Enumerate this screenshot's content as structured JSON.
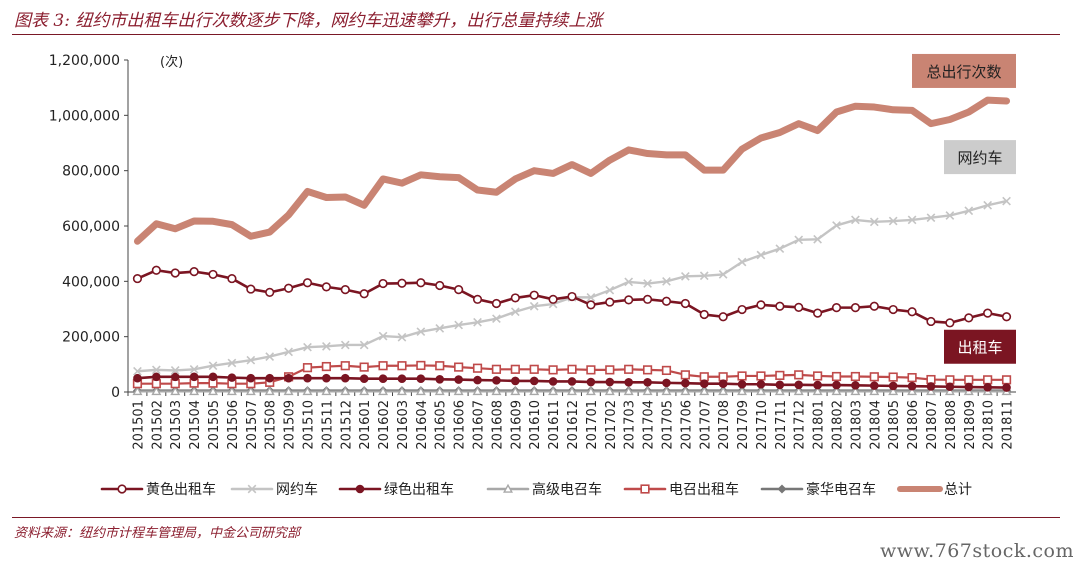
{
  "header": {
    "figure_title": "图表 3:  纽约市出租车出行次数逐步下降，网约车迅速攀升，出行总量持续上涨"
  },
  "footer": {
    "source": "资料来源：纽约市计程车管理局，中金公司研究部",
    "watermark": "www.767stock.com"
  },
  "colors": {
    "yellow_taxi": "#7b1522",
    "rideshare": "#c4c4c4",
    "green_taxi": "#7b1522",
    "high_class_black_car": "#a8a8a8",
    "black_car": "#bf4a4a",
    "luxury_limo": "#777777",
    "total": "#c98473",
    "accent": "#8b1e2f"
  },
  "chart_data": {
    "type": "line",
    "ylabel": "(次)",
    "ylim": [
      0,
      1200000
    ],
    "yticks": [
      "0",
      "200,000",
      "400,000",
      "600,000",
      "800,000",
      "1,000,000",
      "1,200,000"
    ],
    "ytick_values": [
      0,
      200000,
      400000,
      600000,
      800000,
      1000000,
      1200000
    ],
    "grid": false,
    "legend_position": "bottom",
    "categories": [
      "201501",
      "201502",
      "201503",
      "201504",
      "201505",
      "201506",
      "201507",
      "201508",
      "201509",
      "201510",
      "201511",
      "201512",
      "201601",
      "201602",
      "201603",
      "201604",
      "201605",
      "201606",
      "201607",
      "201608",
      "201609",
      "201610",
      "201611",
      "201612",
      "201701",
      "201702",
      "201703",
      "201704",
      "201705",
      "201706",
      "201707",
      "201708",
      "201709",
      "201710",
      "201711",
      "201712",
      "201801",
      "201802",
      "201803",
      "201804",
      "201805",
      "201806",
      "201807",
      "201808",
      "201809",
      "201810",
      "201811"
    ],
    "series": [
      {
        "name": "黄色出租车",
        "key": "yellow_taxi",
        "marker": "circle-open",
        "values": [
          410000,
          440000,
          430000,
          435000,
          425000,
          410000,
          372000,
          360000,
          375000,
          395000,
          380000,
          370000,
          355000,
          392000,
          393000,
          395000,
          385000,
          370000,
          335000,
          320000,
          340000,
          350000,
          335000,
          345000,
          315000,
          325000,
          333000,
          335000,
          328000,
          320000,
          280000,
          272000,
          298000,
          315000,
          310000,
          306000,
          285000,
          305000,
          305000,
          310000,
          298000,
          290000,
          255000,
          250000,
          268000,
          285000,
          272000
        ]
      },
      {
        "name": "网约车",
        "key": "rideshare",
        "marker": "x",
        "values": [
          75000,
          80000,
          78000,
          82000,
          95000,
          105000,
          115000,
          128000,
          145000,
          162000,
          165000,
          170000,
          170000,
          202000,
          198000,
          218000,
          230000,
          242000,
          252000,
          265000,
          290000,
          310000,
          318000,
          342000,
          342000,
          368000,
          398000,
          392000,
          400000,
          418000,
          420000,
          425000,
          470000,
          495000,
          518000,
          550000,
          552000,
          602000,
          622000,
          615000,
          618000,
          622000,
          630000,
          638000,
          655000,
          675000,
          690000
        ]
      },
      {
        "name": "绿色出租车",
        "key": "green_taxi",
        "marker": "circle-filled",
        "values": [
          50000,
          55000,
          55000,
          55000,
          55000,
          52000,
          50000,
          50000,
          50000,
          50000,
          50000,
          50000,
          48000,
          48000,
          48000,
          48000,
          46000,
          45000,
          43000,
          42000,
          40000,
          40000,
          38000,
          38000,
          36000,
          36000,
          35000,
          35000,
          33000,
          32000,
          30000,
          30000,
          28000,
          28000,
          26000,
          26000,
          25000,
          25000,
          24000,
          23000,
          22000,
          21000,
          20000,
          19000,
          18000,
          17000,
          16000
        ]
      },
      {
        "name": "高级电召车",
        "key": "high_class_black_car",
        "marker": "triangle-open",
        "values": [
          2000,
          2000,
          2000,
          2000,
          2000,
          2000,
          2000,
          2000,
          2000,
          2000,
          2000,
          2000,
          2000,
          2000,
          2000,
          2000,
          2000,
          2000,
          2000,
          2000,
          2000,
          2000,
          2000,
          2000,
          2000,
          2000,
          2000,
          2000,
          2000,
          2000,
          2000,
          2000,
          2000,
          2000,
          2000,
          2000,
          2000,
          2000,
          2000,
          2000,
          2000,
          2000,
          2000,
          2000,
          2000,
          2000,
          2000
        ]
      },
      {
        "name": "电召出租车",
        "key": "black_car",
        "marker": "square-open",
        "values": [
          30000,
          30000,
          30000,
          32000,
          32000,
          30000,
          30000,
          35000,
          55000,
          88000,
          92000,
          95000,
          90000,
          95000,
          95000,
          96000,
          95000,
          90000,
          86000,
          82000,
          82000,
          82000,
          80000,
          82000,
          80000,
          80000,
          82000,
          80000,
          78000,
          62000,
          55000,
          55000,
          58000,
          58000,
          60000,
          62000,
          58000,
          56000,
          56000,
          55000,
          54000,
          52000,
          45000,
          44000,
          44000,
          44000,
          44000
        ]
      },
      {
        "name": "豪华电召车",
        "key": "luxury_limo",
        "marker": "diamond-filled",
        "values": [
          5000,
          5000,
          5000,
          5000,
          5000,
          5000,
          5000,
          5000,
          5000,
          5000,
          5000,
          5000,
          5000,
          5000,
          5000,
          5000,
          5000,
          5000,
          5000,
          5000,
          5000,
          5000,
          5000,
          5000,
          5000,
          5000,
          5000,
          5000,
          5000,
          5000,
          5000,
          5000,
          5000,
          5000,
          5000,
          5000,
          5000,
          5000,
          5000,
          5000,
          5000,
          5000,
          5000,
          5000,
          5000,
          5000,
          5000
        ]
      },
      {
        "name": "总计",
        "key": "total",
        "marker": "none",
        "values": [
          545000,
          608000,
          590000,
          618000,
          617000,
          605000,
          563000,
          578000,
          640000,
          725000,
          703000,
          705000,
          675000,
          770000,
          755000,
          785000,
          778000,
          775000,
          730000,
          722000,
          770000,
          800000,
          790000,
          822000,
          790000,
          838000,
          875000,
          862000,
          857000,
          857000,
          802000,
          802000,
          878000,
          918000,
          938000,
          970000,
          945000,
          1012000,
          1033000,
          1030000,
          1020000,
          1018000,
          970000,
          985000,
          1012000,
          1055000,
          1052000
        ]
      }
    ],
    "annotations": [
      {
        "text": "总出行次数",
        "series": "total",
        "box": "#c98473",
        "text_color": "#222222"
      },
      {
        "text": "网约车",
        "series": "rideshare",
        "box": "#cccccc",
        "text_color": "#222222"
      },
      {
        "text": "出租车",
        "series": "yellow_taxi",
        "box": "#7b1522",
        "text_color": "#ffffff"
      }
    ]
  }
}
